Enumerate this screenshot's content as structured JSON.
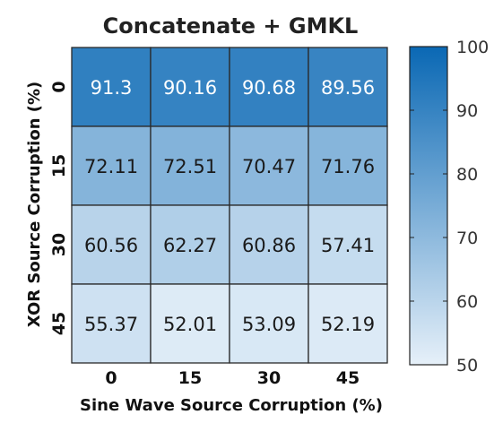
{
  "chart_data": {
    "type": "heatmap",
    "title": "Concatenate + GMKL",
    "xlabel": "Sine Wave Source Corruption (%)",
    "ylabel": "XOR Source Corruption (%)",
    "x_categories": [
      "0",
      "15",
      "30",
      "45"
    ],
    "y_categories": [
      "0",
      "15",
      "30",
      "45"
    ],
    "values": [
      [
        91.3,
        90.16,
        90.68,
        89.56
      ],
      [
        72.11,
        72.51,
        70.47,
        71.76
      ],
      [
        60.56,
        62.27,
        60.86,
        57.41
      ],
      [
        55.37,
        52.01,
        53.09,
        52.19
      ]
    ],
    "value_labels": [
      [
        "91.3",
        "90.16",
        "90.68",
        "89.56"
      ],
      [
        "72.11",
        "72.51",
        "70.47",
        "71.76"
      ],
      [
        "60.56",
        "62.27",
        "60.86",
        "57.41"
      ],
      [
        "55.37",
        "52.01",
        "53.09",
        "52.19"
      ]
    ],
    "colorbar": {
      "min": 50,
      "max": 100,
      "ticks": [
        "100",
        "90",
        "80",
        "70",
        "60",
        "50"
      ],
      "color_low": "#e6f0f9",
      "color_high": "#0a68b4"
    }
  }
}
